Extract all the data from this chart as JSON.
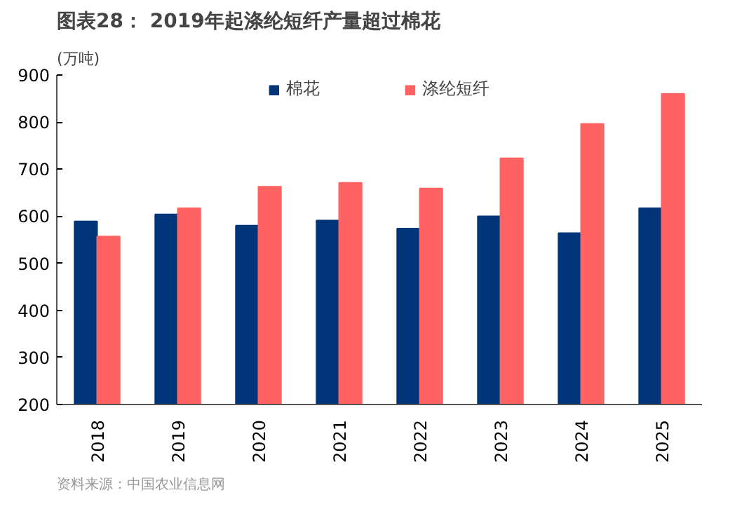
{
  "chart_data": {
    "type": "bar",
    "title": "图表28： 2019年起涤纶短纤产量超过棉花",
    "ylabel": "(万吨)",
    "categories": [
      "2018",
      "2019",
      "2020",
      "2021",
      "2022",
      "2023",
      "2024",
      "2025"
    ],
    "series": [
      {
        "name": "棉花",
        "color": "#003679",
        "values": [
          589,
          604,
          580,
          591,
          574,
          600,
          564,
          617
        ]
      },
      {
        "name": "涤纶短纤",
        "color": "#ff6262",
        "values": [
          557,
          617,
          663,
          671,
          659,
          723,
          796,
          860
        ]
      }
    ],
    "ylim": [
      200,
      900
    ],
    "yticks": [
      200,
      300,
      400,
      500,
      600,
      700,
      800,
      900
    ],
    "grid": false,
    "legend": "top",
    "annotations": [
      "资料来源：中国农业信息网"
    ]
  }
}
